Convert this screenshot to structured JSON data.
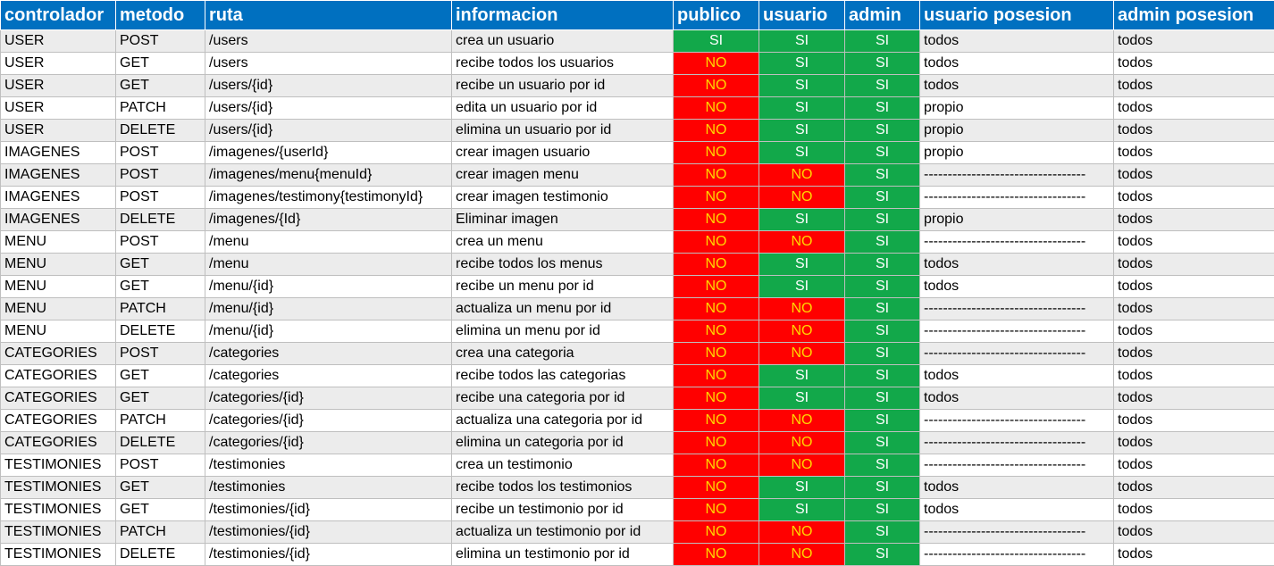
{
  "headers": [
    "controlador",
    "metodo",
    "ruta",
    "informacion",
    "publico",
    "usuario",
    "admin",
    "usuario posesion",
    "admin posesion"
  ],
  "colors": {
    "header": "#0070c0",
    "si": "#12a84a",
    "no": "#ff0000",
    "no_text": "#ffd700"
  },
  "rows": [
    [
      "USER",
      "POST",
      "/users",
      "crea un usuario",
      "SI",
      "SI",
      "SI",
      "todos",
      "todos"
    ],
    [
      "USER",
      "GET",
      "/users",
      "recibe todos los usuarios",
      "NO",
      "SI",
      "SI",
      "todos",
      "todos"
    ],
    [
      "USER",
      "GET",
      "/users/{id}",
      "recibe un usuario por id",
      "NO",
      "SI",
      "SI",
      "todos",
      "todos"
    ],
    [
      "USER",
      "PATCH",
      "/users/{id}",
      "edita un usuario por id",
      "NO",
      "SI",
      "SI",
      "propio",
      "todos"
    ],
    [
      "USER",
      "DELETE",
      "/users/{id}",
      "elimina un usuario por id",
      "NO",
      "SI",
      "SI",
      "propio",
      "todos"
    ],
    [
      "IMAGENES",
      "POST",
      "/imagenes/{userId}",
      "crear imagen usuario",
      "NO",
      "SI",
      "SI",
      "propio",
      "todos"
    ],
    [
      "IMAGENES",
      "POST",
      "/imagenes/menu{menuId}",
      "crear imagen menu",
      "NO",
      "NO",
      "SI",
      "----------------------------------",
      "todos"
    ],
    [
      "IMAGENES",
      "POST",
      "/imagenes/testimony{testimonyId}",
      "crear imagen testimonio",
      "NO",
      "NO",
      "SI",
      "----------------------------------",
      "todos"
    ],
    [
      "IMAGENES",
      "DELETE",
      "/imagenes/{Id}",
      "Eliminar imagen",
      "NO",
      "SI",
      "SI",
      "propio",
      "todos"
    ],
    [
      "MENU",
      "POST",
      "/menu",
      "crea un menu",
      "NO",
      "NO",
      "SI",
      "----------------------------------",
      "todos"
    ],
    [
      "MENU",
      "GET",
      "/menu",
      "recibe todos los menus",
      "NO",
      "SI",
      "SI",
      "todos",
      "todos"
    ],
    [
      "MENU",
      "GET",
      "/menu/{id}",
      "recibe un menu por id",
      "NO",
      "SI",
      "SI",
      "todos",
      "todos"
    ],
    [
      "MENU",
      "PATCH",
      "/menu/{id}",
      "actualiza un menu por id",
      "NO",
      "NO",
      "SI",
      "----------------------------------",
      "todos"
    ],
    [
      "MENU",
      "DELETE",
      "/menu/{id}",
      "elimina un menu por id",
      "NO",
      "NO",
      "SI",
      "----------------------------------",
      "todos"
    ],
    [
      "CATEGORIES",
      "POST",
      "/categories",
      "crea una categoria",
      "NO",
      "NO",
      "SI",
      "----------------------------------",
      "todos"
    ],
    [
      "CATEGORIES",
      "GET",
      "/categories",
      "recibe todos las categorias",
      "NO",
      "SI",
      "SI",
      "todos",
      "todos"
    ],
    [
      "CATEGORIES",
      "GET",
      "/categories/{id}",
      "recibe una categoria por id",
      "NO",
      "SI",
      "SI",
      "todos",
      "todos"
    ],
    [
      "CATEGORIES",
      "PATCH",
      "/categories/{id}",
      "actualiza una categoria por id",
      "NO",
      "NO",
      "SI",
      "----------------------------------",
      "todos"
    ],
    [
      "CATEGORIES",
      "DELETE",
      "/categories/{id}",
      "elimina un categoria por id",
      "NO",
      "NO",
      "SI",
      "----------------------------------",
      "todos"
    ],
    [
      "TESTIMONIES",
      "POST",
      "/testimonies",
      "crea un testimonio",
      "NO",
      "NO",
      "SI",
      "----------------------------------",
      "todos"
    ],
    [
      "TESTIMONIES",
      "GET",
      "/testimonies",
      "recibe todos los testimonios",
      "NO",
      "SI",
      "SI",
      "todos",
      "todos"
    ],
    [
      "TESTIMONIES",
      "GET",
      "/testimonies/{id}",
      "recibe un testimonio por id",
      "NO",
      "SI",
      "SI",
      "todos",
      "todos"
    ],
    [
      "TESTIMONIES",
      "PATCH",
      "/testimonies/{id}",
      "actualiza un testimonio por id",
      "NO",
      "NO",
      "SI",
      "----------------------------------",
      "todos"
    ],
    [
      "TESTIMONIES",
      "DELETE",
      "/testimonies/{id}",
      "elimina un testimonio por id",
      "NO",
      "NO",
      "SI",
      "----------------------------------",
      "todos"
    ]
  ]
}
